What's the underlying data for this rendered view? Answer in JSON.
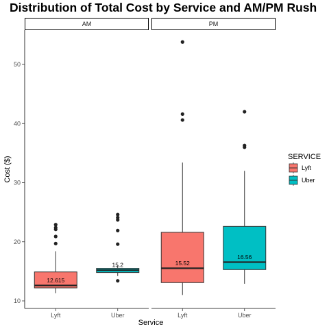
{
  "chart_data": {
    "type": "boxplot",
    "title": "Distribution of Total Cost by Service and AM/PM Rush",
    "xlabel": "Service",
    "ylabel": "Cost ($)",
    "ylim": [
      9,
      55
    ],
    "yticks": [
      "10",
      "20",
      "30",
      "40",
      "50"
    ],
    "categories": [
      "Lyft",
      "Uber"
    ],
    "legend": {
      "title": "SERVICE",
      "position": "right",
      "items": [
        {
          "label": "Lyft",
          "color": "#F8766D"
        },
        {
          "label": "Uber",
          "color": "#00BFC4"
        }
      ]
    },
    "panels": [
      {
        "label": "AM",
        "boxes": [
          {
            "service": "Lyft",
            "color": "#F8766D",
            "min": 11.3,
            "q1": 12.2,
            "median": 12.615,
            "q3": 14.9,
            "max": 18.4,
            "median_label": "12.615",
            "outliers": [
              19.7,
              20.9,
              22.1,
              22.4,
              22.9
            ]
          },
          {
            "service": "Uber",
            "color": "#00BFC4",
            "min": 14.2,
            "q1": 14.8,
            "median": 15.2,
            "q3": 15.5,
            "max": 16.0,
            "median_label": "15.2",
            "outliers": [
              13.4,
              19.6,
              21.9,
              23.7,
              24.1,
              24.6
            ]
          }
        ]
      },
      {
        "label": "PM",
        "boxes": [
          {
            "service": "Lyft",
            "color": "#F8766D",
            "min": 11.0,
            "q1": 13.1,
            "median": 15.52,
            "q3": 21.6,
            "max": 33.4,
            "median_label": "15.52",
            "outliers": [
              40.6,
              41.6,
              53.8
            ]
          },
          {
            "service": "Uber",
            "color": "#00BFC4",
            "min": 12.9,
            "q1": 15.3,
            "median": 16.56,
            "q3": 22.6,
            "max": 32.0,
            "median_label": "16.56",
            "outliers": [
              36.0,
              36.3,
              42.0
            ]
          }
        ]
      }
    ]
  }
}
